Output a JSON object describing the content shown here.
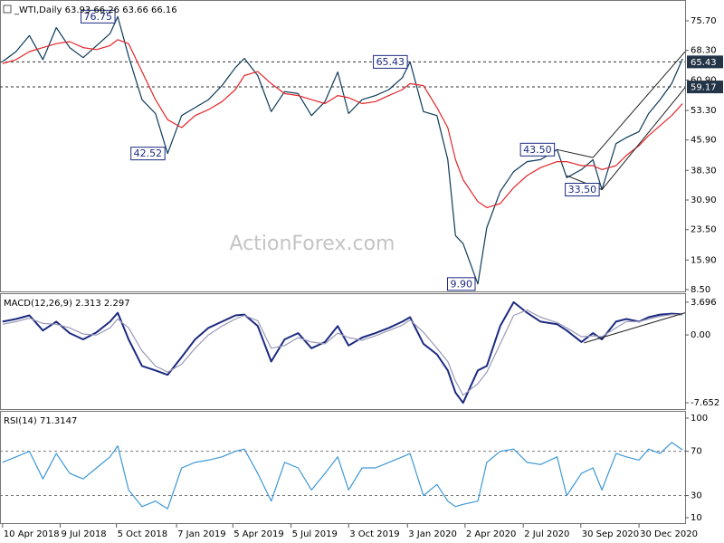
{
  "chart_data": [
    {
      "type": "line",
      "title": "_WTI,Daily 63.93 66.26 63.66 66.16",
      "watermark": "ActionForex.com",
      "x": [
        "2018-04-10",
        "2018-05-01",
        "2018-05-22",
        "2018-06-12",
        "2018-07-03",
        "2018-07-24",
        "2018-08-14",
        "2018-09-04",
        "2018-09-25",
        "2018-10-07",
        "2018-10-24",
        "2018-11-14",
        "2018-12-05",
        "2018-12-24",
        "2019-01-15",
        "2019-02-05",
        "2019-02-26",
        "2019-03-19",
        "2019-04-09",
        "2019-04-23",
        "2019-05-14",
        "2019-06-04",
        "2019-06-25",
        "2019-07-16",
        "2019-08-06",
        "2019-08-27",
        "2019-09-16",
        "2019-10-03",
        "2019-10-24",
        "2019-11-14",
        "2019-12-05",
        "2019-12-26",
        "2020-01-07",
        "2020-01-28",
        "2020-02-18",
        "2020-03-06",
        "2020-03-18",
        "2020-03-30",
        "2020-04-22",
        "2020-05-06",
        "2020-05-27",
        "2020-06-17",
        "2020-07-08",
        "2020-07-29",
        "2020-08-24",
        "2020-09-08",
        "2020-10-01",
        "2020-10-19",
        "2020-11-02",
        "2020-11-24",
        "2020-12-10",
        "2020-12-30",
        "2021-01-14",
        "2021-02-01",
        "2021-02-19",
        "2021-03-08"
      ],
      "series": [
        {
          "color": "#0d3b5a",
          "values": [
            65.5,
            68,
            72,
            66,
            74,
            69,
            66.5,
            69.5,
            72.5,
            76.75,
            66.8,
            56,
            52.5,
            42.52,
            52,
            54,
            56,
            59.5,
            64,
            66.3,
            62,
            53,
            58,
            57.5,
            52,
            55.5,
            62.9,
            52.5,
            56,
            57,
            58.5,
            61.5,
            65.43,
            53,
            52,
            41,
            22,
            20,
            9.9,
            24,
            33,
            38,
            40.5,
            41,
            43.5,
            36.5,
            38.5,
            41,
            33.5,
            45,
            46.5,
            48,
            52.5,
            56,
            60,
            66.2
          ]
        },
        {
          "color": "#e3262b",
          "values": [
            65,
            66,
            68,
            69,
            70,
            70.5,
            69,
            68.5,
            69.5,
            71,
            70,
            63,
            56,
            51,
            49,
            52,
            53.5,
            55.5,
            58.5,
            62,
            63,
            60,
            57.5,
            57,
            56,
            55,
            57,
            56.5,
            55,
            55.5,
            57,
            58.5,
            60,
            59.5,
            54,
            49,
            41,
            36,
            30.5,
            29,
            30,
            34,
            37,
            39,
            40.5,
            40.5,
            39.5,
            39.5,
            38.5,
            39.5,
            42,
            44.5,
            47,
            49.5,
            52,
            55
          ]
        }
      ],
      "xlim": [
        "2018-04-06",
        "2021-03-12"
      ],
      "ylim": [
        8.05,
        80.45
      ],
      "yticks": [
        {
          "value": 75.7,
          "label": "75.70"
        },
        {
          "value": 68.3,
          "label": "68.30"
        },
        {
          "value": 60.9,
          "label": "60.90"
        },
        {
          "value": 53.3,
          "label": "53.30"
        },
        {
          "value": 45.9,
          "label": "45.90"
        },
        {
          "value": 38.3,
          "label": "38.30"
        },
        {
          "value": 30.9,
          "label": "30.90"
        },
        {
          "value": 23.5,
          "label": "23.50"
        },
        {
          "value": 15.9,
          "label": "15.90"
        },
        {
          "value": 8.5,
          "label": "8.50"
        }
      ],
      "levels": [
        65.43,
        59.17
      ],
      "annotations": [
        {
          "x": "2018-10-07",
          "value": 76.75
        },
        {
          "x": "2018-12-24",
          "value": 42.52
        },
        {
          "x": "2020-01-07",
          "value": 65.43
        },
        {
          "x": "2020-04-22",
          "value": 9.9,
          "label": "9.90"
        },
        {
          "x": "2020-08-24",
          "value": 43.5,
          "label": "43.50"
        },
        {
          "x": "2020-11-02",
          "value": 33.5,
          "label": "33.50"
        }
      ],
      "trendlines": [
        {
          "x": [
            "2020-08-24",
            "2020-10-19"
          ],
          "values": [
            43.5,
            41.5
          ]
        },
        {
          "x": [
            "2020-09-08",
            "2020-11-02"
          ],
          "values": [
            37,
            33.5
          ]
        },
        {
          "x": [
            "2020-11-02",
            "2021-03-12"
          ],
          "values": [
            33.5,
            59
          ]
        },
        {
          "x": [
            "2020-10-19",
            "2021-03-12"
          ],
          "values": [
            41.5,
            68
          ]
        }
      ]
    },
    {
      "type": "line",
      "title": "MACD(12,26,9) 2.313 2.297",
      "x": [
        "2018-04-10",
        "2018-05-01",
        "2018-05-22",
        "2018-06-12",
        "2018-07-03",
        "2018-07-24",
        "2018-08-14",
        "2018-09-04",
        "2018-09-25",
        "2018-10-07",
        "2018-10-24",
        "2018-11-14",
        "2018-12-05",
        "2018-12-24",
        "2019-01-15",
        "2019-02-05",
        "2019-02-26",
        "2019-03-19",
        "2019-04-09",
        "2019-04-23",
        "2019-05-14",
        "2019-06-04",
        "2019-06-25",
        "2019-07-16",
        "2019-08-06",
        "2019-08-27",
        "2019-09-16",
        "2019-10-03",
        "2019-10-24",
        "2019-11-14",
        "2019-12-05",
        "2019-12-26",
        "2020-01-07",
        "2020-01-28",
        "2020-02-18",
        "2020-03-06",
        "2020-03-18",
        "2020-03-30",
        "2020-04-22",
        "2020-05-06",
        "2020-05-27",
        "2020-06-17",
        "2020-07-08",
        "2020-07-29",
        "2020-08-24",
        "2020-09-08",
        "2020-10-01",
        "2020-10-19",
        "2020-11-02",
        "2020-11-24",
        "2020-12-10",
        "2020-12-30",
        "2021-01-14",
        "2021-02-01",
        "2021-02-19",
        "2021-03-08"
      ],
      "series": [
        {
          "color": "#1c2a80",
          "values": [
            1.5,
            1.8,
            2.2,
            0.5,
            1.5,
            0.2,
            -0.5,
            0.3,
            1.5,
            2.5,
            -0.5,
            -3.5,
            -4.0,
            -4.5,
            -2.5,
            -0.5,
            0.8,
            1.5,
            2.2,
            2.3,
            1.0,
            -3.0,
            -0.5,
            0.2,
            -1.5,
            -0.8,
            1.0,
            -1.2,
            -0.3,
            0.2,
            0.8,
            1.5,
            2.0,
            -1.0,
            -2.2,
            -4.0,
            -6.5,
            -7.652,
            -4.0,
            -3.5,
            1.0,
            3.696,
            2.5,
            1.5,
            1.2,
            0.5,
            -0.8,
            0.2,
            -0.5,
            1.5,
            1.8,
            1.5,
            2.0,
            2.3,
            2.4,
            2.313
          ]
        },
        {
          "color": "#9a9ab8",
          "values": [
            1.2,
            1.5,
            1.9,
            1.3,
            1.2,
            0.8,
            0.1,
            0.0,
            0.8,
            1.8,
            0.8,
            -1.8,
            -3.5,
            -4.2,
            -3.3,
            -1.5,
            0.0,
            1.0,
            1.8,
            2.2,
            1.6,
            -1.5,
            -1.2,
            -0.3,
            -0.8,
            -1.0,
            0.2,
            -0.3,
            -0.6,
            -0.1,
            0.5,
            1.1,
            1.7,
            0.3,
            -1.5,
            -3.0,
            -5.2,
            -6.8,
            -5.5,
            -4.2,
            -1.0,
            2.2,
            2.8,
            2.0,
            1.4,
            0.8,
            -0.2,
            -0.1,
            -0.2,
            0.8,
            1.5,
            1.5,
            1.8,
            2.1,
            2.3,
            2.297
          ]
        }
      ],
      "xlim": [
        "2018-04-06",
        "2021-03-12"
      ],
      "ylim": [
        -8.36,
        4.5
      ],
      "yticks": [
        3.696,
        {
          "value": 0,
          "label": "0.00"
        },
        -7.652
      ],
      "trendlines": [
        {
          "x": [
            "2020-10-05",
            "2021-03-12"
          ],
          "values": [
            -0.9,
            2.5
          ]
        }
      ]
    },
    {
      "type": "line",
      "title": "RSI(14) 71.3147",
      "x": [
        "2018-04-10",
        "2018-05-01",
        "2018-05-22",
        "2018-06-12",
        "2018-07-03",
        "2018-07-24",
        "2018-08-14",
        "2018-09-04",
        "2018-09-25",
        "2018-10-07",
        "2018-10-24",
        "2018-11-14",
        "2018-12-05",
        "2018-12-24",
        "2019-01-15",
        "2019-02-05",
        "2019-02-26",
        "2019-03-19",
        "2019-04-09",
        "2019-04-23",
        "2019-05-14",
        "2019-06-04",
        "2019-06-25",
        "2019-07-16",
        "2019-08-06",
        "2019-08-27",
        "2019-09-16",
        "2019-10-03",
        "2019-10-24",
        "2019-11-14",
        "2019-12-05",
        "2019-12-26",
        "2020-01-07",
        "2020-01-28",
        "2020-02-18",
        "2020-03-06",
        "2020-03-18",
        "2020-03-30",
        "2020-04-22",
        "2020-05-06",
        "2020-05-27",
        "2020-06-17",
        "2020-07-08",
        "2020-07-29",
        "2020-08-24",
        "2020-09-08",
        "2020-10-01",
        "2020-10-19",
        "2020-11-02",
        "2020-11-24",
        "2020-12-10",
        "2020-12-30",
        "2021-01-14",
        "2021-02-01",
        "2021-02-19",
        "2021-03-08"
      ],
      "series": [
        {
          "color": "#3d98d6",
          "values": [
            60,
            65,
            70,
            45,
            68,
            50,
            45,
            55,
            65,
            75,
            35,
            20,
            25,
            18,
            55,
            60,
            62,
            65,
            70,
            72,
            50,
            25,
            60,
            55,
            35,
            50,
            65,
            35,
            55,
            55,
            60,
            65,
            68,
            30,
            40,
            25,
            20,
            22,
            25,
            60,
            70,
            72,
            60,
            58,
            65,
            30,
            50,
            55,
            35,
            68,
            65,
            62,
            72,
            68,
            78,
            71.3147
          ]
        }
      ],
      "xlim": [
        "2018-04-06",
        "2021-03-12"
      ],
      "ylim": [
        5.1,
        104.9
      ],
      "yticks": [
        100,
        70,
        30,
        10
      ],
      "dashed_lines": [
        70,
        30
      ],
      "xticks": [
        {
          "value": "2018-04-10",
          "label": "10 Apr 2018"
        },
        {
          "value": "2018-07-09",
          "label": "9 Jul 2018"
        },
        {
          "value": "2018-10-05",
          "label": "5 Oct 2018"
        },
        {
          "value": "2019-01-07",
          "label": "7 Jan 2019"
        },
        {
          "value": "2019-04-05",
          "label": "5 Apr 2019"
        },
        {
          "value": "2019-07-05",
          "label": "5 Jul 2019"
        },
        {
          "value": "2019-10-03",
          "label": "3 Oct 2019"
        },
        {
          "value": "2020-01-03",
          "label": "3 Jan 2020"
        },
        {
          "value": "2020-04-02",
          "label": "2 Apr 2020"
        },
        {
          "value": "2020-07-02",
          "label": "2 Jul 2020"
        },
        {
          "value": "2020-09-30",
          "label": "30 Sep 2020"
        },
        {
          "value": "2020-12-30",
          "label": "30 Dec 2020"
        }
      ]
    }
  ]
}
